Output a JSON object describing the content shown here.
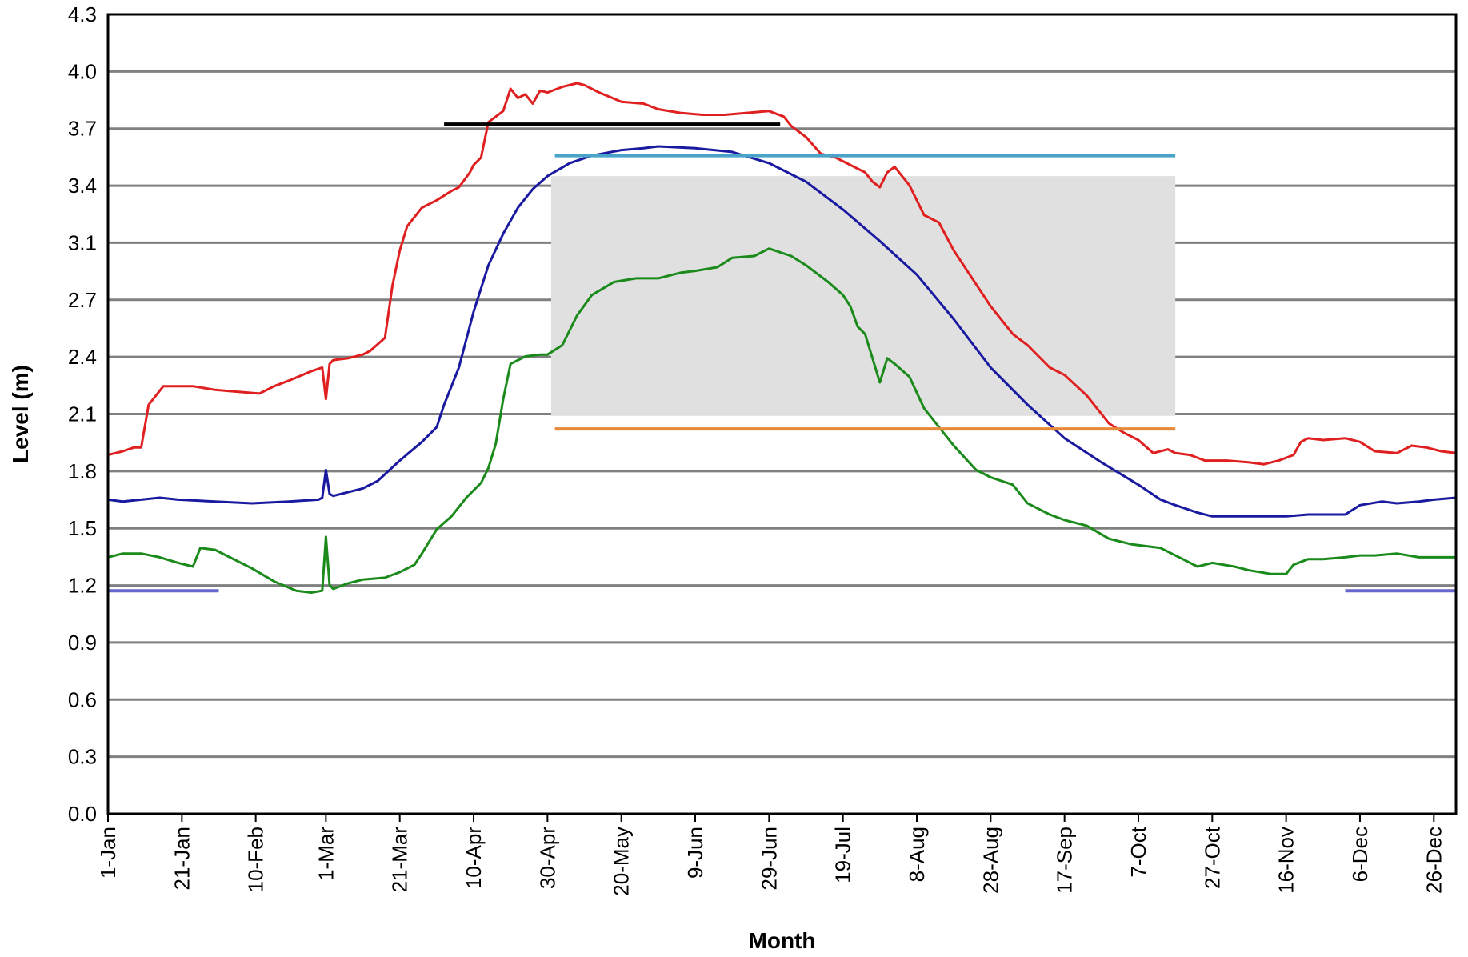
{
  "chart_data": {
    "type": "line",
    "title": "",
    "xlabel": "Month",
    "ylabel": "Level (m)",
    "ylim": [
      0,
      4.3
    ],
    "y_ticks": [
      "0.0",
      "0.3",
      "0.6",
      "0.9",
      "1.2",
      "1.5",
      "1.8",
      "2.1",
      "2.4",
      "2.7",
      "3.1",
      "3.4",
      "3.7",
      "4.0",
      "4.3"
    ],
    "xlim": [
      1,
      366
    ],
    "x_ticks": [
      {
        "day": 1,
        "label": "1-Jan"
      },
      {
        "day": 21,
        "label": "21-Jan"
      },
      {
        "day": 41,
        "label": "10-Feb"
      },
      {
        "day": 60,
        "label": "1-Mar"
      },
      {
        "day": 80,
        "label": "21-Mar"
      },
      {
        "day": 100,
        "label": "10-Apr"
      },
      {
        "day": 120,
        "label": "30-Apr"
      },
      {
        "day": 140,
        "label": "20-May"
      },
      {
        "day": 160,
        "label": "9-Jun"
      },
      {
        "day": 180,
        "label": "29-Jun"
      },
      {
        "day": 200,
        "label": "19-Jul"
      },
      {
        "day": 220,
        "label": "8-Aug"
      },
      {
        "day": 240,
        "label": "28-Aug"
      },
      {
        "day": 260,
        "label": "17-Sep"
      },
      {
        "day": 280,
        "label": "7-Oct"
      },
      {
        "day": 300,
        "label": "27-Oct"
      },
      {
        "day": 320,
        "label": "16-Nov"
      },
      {
        "day": 340,
        "label": "6-Dec"
      },
      {
        "day": 360,
        "label": "26-Dec"
      }
    ],
    "grid": true,
    "legend": "none",
    "shaded_band": {
      "x": [
        121,
        290
      ],
      "y": [
        2.14,
        3.43
      ],
      "color": "#e0e0e0"
    },
    "reference_lines": [
      {
        "x": [
          92,
          183
        ],
        "y": 3.71,
        "color": "#000000"
      },
      {
        "x": [
          122,
          290
        ],
        "y": 3.54,
        "color": "#4aa3c9"
      },
      {
        "x": [
          122,
          290
        ],
        "y": 2.07,
        "color": "#e8893a"
      },
      {
        "x": [
          1,
          31
        ],
        "y": 1.2,
        "color": "#6666cc"
      },
      {
        "x": [
          336,
          366
        ],
        "y": 1.2,
        "color": "#6666cc"
      }
    ],
    "series": [
      {
        "color": "#e02020",
        "x": [
          1,
          5,
          8,
          10,
          12,
          16,
          20,
          24,
          30,
          36,
          42,
          46,
          50,
          56,
          59,
          60,
          61,
          62,
          66,
          70,
          72,
          76,
          78,
          80,
          82,
          86,
          90,
          94,
          96,
          99,
          100,
          102,
          104,
          106,
          108,
          110,
          112,
          114,
          116,
          118,
          120,
          124,
          128,
          130,
          134,
          140,
          146,
          150,
          156,
          162,
          168,
          174,
          180,
          184,
          186,
          190,
          194,
          198,
          202,
          206,
          208,
          210,
          212,
          214,
          218,
          222,
          226,
          230,
          236,
          240,
          246,
          250,
          256,
          260,
          266,
          272,
          276,
          280,
          284,
          288,
          290,
          294,
          298,
          304,
          310,
          314,
          318,
          322,
          324,
          326,
          330,
          336,
          340,
          344,
          350,
          354,
          358,
          362,
          366
        ],
        "y": [
          1.93,
          1.95,
          1.97,
          1.97,
          2.2,
          2.3,
          2.3,
          2.3,
          2.28,
          2.27,
          2.26,
          2.3,
          2.33,
          2.38,
          2.4,
          2.23,
          2.42,
          2.44,
          2.45,
          2.47,
          2.49,
          2.56,
          2.84,
          3.03,
          3.16,
          3.26,
          3.3,
          3.35,
          3.37,
          3.45,
          3.49,
          3.53,
          3.72,
          3.75,
          3.78,
          3.9,
          3.85,
          3.87,
          3.82,
          3.89,
          3.88,
          3.91,
          3.93,
          3.92,
          3.88,
          3.83,
          3.82,
          3.79,
          3.77,
          3.76,
          3.76,
          3.77,
          3.78,
          3.75,
          3.7,
          3.64,
          3.55,
          3.53,
          3.49,
          3.45,
          3.4,
          3.37,
          3.45,
          3.48,
          3.38,
          3.22,
          3.18,
          3.03,
          2.85,
          2.73,
          2.58,
          2.52,
          2.4,
          2.36,
          2.25,
          2.1,
          2.05,
          2.01,
          1.94,
          1.96,
          1.94,
          1.93,
          1.9,
          1.9,
          1.89,
          1.88,
          1.9,
          1.93,
          2.0,
          2.02,
          2.01,
          2.02,
          2.0,
          1.95,
          1.94,
          1.98,
          1.97,
          1.95,
          1.94
        ]
      },
      {
        "color": "#1a1aa0",
        "x": [
          1,
          5,
          10,
          15,
          20,
          30,
          40,
          50,
          58,
          59,
          60,
          61,
          62,
          66,
          70,
          74,
          80,
          86,
          90,
          92,
          96,
          100,
          104,
          108,
          112,
          116,
          120,
          126,
          132,
          140,
          146,
          150,
          160,
          170,
          180,
          190,
          200,
          210,
          220,
          230,
          240,
          250,
          260,
          270,
          280,
          286,
          290,
          296,
          300,
          306,
          310,
          316,
          320,
          326,
          330,
          336,
          340,
          346,
          350,
          356,
          360,
          366
        ],
        "y": [
          1.69,
          1.68,
          1.69,
          1.7,
          1.69,
          1.68,
          1.67,
          1.68,
          1.69,
          1.7,
          1.85,
          1.72,
          1.71,
          1.73,
          1.75,
          1.79,
          1.9,
          2.0,
          2.08,
          2.2,
          2.4,
          2.7,
          2.95,
          3.12,
          3.26,
          3.36,
          3.43,
          3.5,
          3.54,
          3.57,
          3.58,
          3.59,
          3.58,
          3.56,
          3.5,
          3.4,
          3.25,
          3.08,
          2.9,
          2.66,
          2.4,
          2.2,
          2.02,
          1.89,
          1.77,
          1.69,
          1.66,
          1.62,
          1.6,
          1.6,
          1.6,
          1.6,
          1.6,
          1.61,
          1.61,
          1.61,
          1.66,
          1.68,
          1.67,
          1.68,
          1.69,
          1.7
        ]
      },
      {
        "color": "#1a8a1a",
        "x": [
          1,
          5,
          10,
          15,
          20,
          24,
          26,
          30,
          34,
          40,
          46,
          52,
          56,
          59,
          60,
          61,
          62,
          66,
          70,
          76,
          80,
          84,
          86,
          90,
          94,
          98,
          100,
          102,
          104,
          106,
          108,
          110,
          114,
          118,
          120,
          124,
          128,
          132,
          138,
          144,
          150,
          156,
          160,
          166,
          170,
          176,
          180,
          186,
          190,
          196,
          200,
          202,
          204,
          206,
          210,
          212,
          214,
          218,
          222,
          230,
          236,
          240,
          246,
          250,
          256,
          260,
          266,
          272,
          278,
          286,
          292,
          296,
          300,
          306,
          310,
          316,
          320,
          322,
          326,
          330,
          336,
          340,
          344,
          350,
          356,
          360,
          366
        ],
        "y": [
          1.38,
          1.4,
          1.4,
          1.38,
          1.35,
          1.33,
          1.43,
          1.42,
          1.38,
          1.32,
          1.25,
          1.2,
          1.19,
          1.2,
          1.49,
          1.23,
          1.21,
          1.24,
          1.26,
          1.27,
          1.3,
          1.34,
          1.4,
          1.53,
          1.6,
          1.7,
          1.74,
          1.78,
          1.86,
          1.99,
          2.23,
          2.42,
          2.46,
          2.47,
          2.47,
          2.52,
          2.68,
          2.79,
          2.86,
          2.88,
          2.88,
          2.91,
          2.92,
          2.94,
          2.99,
          3.0,
          3.04,
          3.0,
          2.95,
          2.86,
          2.79,
          2.73,
          2.62,
          2.58,
          2.32,
          2.45,
          2.42,
          2.35,
          2.18,
          1.98,
          1.85,
          1.81,
          1.77,
          1.67,
          1.61,
          1.58,
          1.55,
          1.48,
          1.45,
          1.43,
          1.37,
          1.33,
          1.35,
          1.33,
          1.31,
          1.29,
          1.29,
          1.34,
          1.37,
          1.37,
          1.38,
          1.39,
          1.39,
          1.4,
          1.38,
          1.38,
          1.38
        ]
      }
    ]
  }
}
